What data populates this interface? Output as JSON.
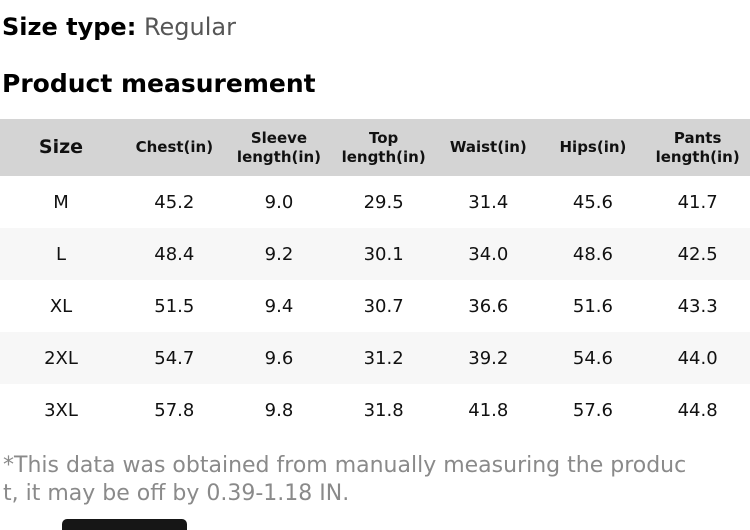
{
  "page": {
    "size_type_label": "Size type:",
    "size_type_value": "Regular",
    "section_title": "Product measurement"
  },
  "table": {
    "columns": [
      "Size",
      "Chest(in)",
      "Sleeve length(in)",
      "Top length(in)",
      "Waist(in)",
      "Hips(in)",
      "Pants length(in)"
    ],
    "rows": [
      {
        "size": "M",
        "values": [
          "45.2",
          "9.0",
          "29.5",
          "31.4",
          "45.6",
          "41.7"
        ]
      },
      {
        "size": "L",
        "values": [
          "48.4",
          "9.2",
          "30.1",
          "34.0",
          "48.6",
          "42.5"
        ]
      },
      {
        "size": "XL",
        "values": [
          "51.5",
          "9.4",
          "30.7",
          "36.6",
          "51.6",
          "43.3"
        ]
      },
      {
        "size": "2XL",
        "values": [
          "54.7",
          "9.6",
          "31.2",
          "39.2",
          "54.6",
          "44.0"
        ]
      },
      {
        "size": "3XL",
        "values": [
          "57.8",
          "9.8",
          "31.8",
          "41.8",
          "57.6",
          "44.8"
        ]
      }
    ]
  },
  "footer": {
    "note_lines": [
      "*This data was obtained from manually measuring the produc",
      "t, it may be off by 0.39-1.18 IN."
    ]
  },
  "colors": {
    "header_bg": "#d4d4d4",
    "row_alt_bg": "#f7f7f7",
    "muted_text": "#565656",
    "note_text": "#8a8a8a"
  }
}
